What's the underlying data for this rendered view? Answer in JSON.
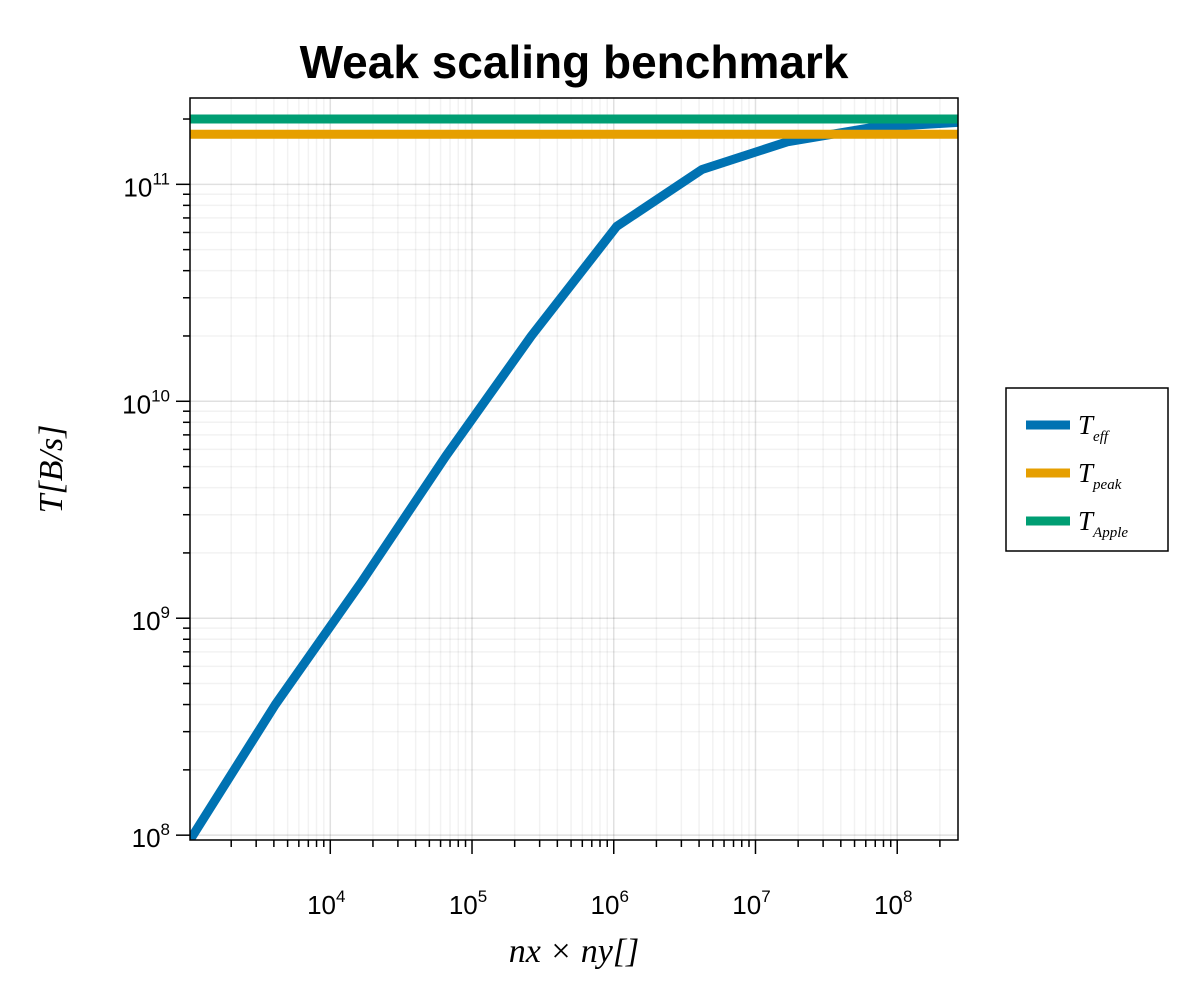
{
  "chart_data": {
    "type": "line",
    "title": "Weak scaling benchmark",
    "xlabel": "nx × ny[]",
    "ylabel": "T[B/s]",
    "x_scale": "log10",
    "y_scale": "log10",
    "xlim": [
      1024,
      268435456
    ],
    "ylim": [
      95000000,
      250000000000
    ],
    "x_ticks": [
      {
        "value": 10000,
        "base": "10",
        "exp": "4"
      },
      {
        "value": 100000,
        "base": "10",
        "exp": "5"
      },
      {
        "value": 1000000,
        "base": "10",
        "exp": "6"
      },
      {
        "value": 10000000,
        "base": "10",
        "exp": "7"
      },
      {
        "value": 100000000,
        "base": "10",
        "exp": "8"
      }
    ],
    "y_ticks": [
      {
        "value": 100000000,
        "base": "10",
        "exp": "8"
      },
      {
        "value": 1000000000,
        "base": "10",
        "exp": "9"
      },
      {
        "value": 10000000000,
        "base": "10",
        "exp": "10"
      },
      {
        "value": 100000000000,
        "base": "10",
        "exp": "11"
      }
    ],
    "grid": true,
    "legend_position": "right",
    "series": [
      {
        "name": "T",
        "subscript": "eff",
        "color": "#0072b2",
        "x": [
          1024,
          4096,
          16384,
          65536,
          262144,
          1048576,
          4194304,
          16777216,
          67108864,
          268435456
        ],
        "y": [
          95000000,
          400000000,
          1450000000,
          5600000000,
          20000000000,
          64000000000,
          117000000000,
          157000000000,
          183000000000,
          193000000000
        ]
      },
      {
        "name": "T",
        "subscript": "peak",
        "color": "#e69f00",
        "x": [
          1024,
          268435456
        ],
        "y": [
          170000000000,
          170000000000
        ]
      },
      {
        "name": "T",
        "subscript": "Apple",
        "color": "#009e73",
        "x": [
          1024,
          268435456
        ],
        "y": [
          200000000000,
          200000000000
        ]
      }
    ]
  }
}
